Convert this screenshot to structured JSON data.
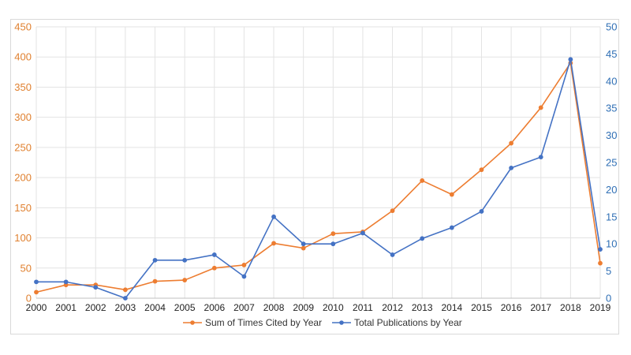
{
  "chart_data": {
    "type": "line",
    "title": "",
    "xlabel": "",
    "ylabel": "",
    "categories": [
      "2000",
      "2001",
      "2002",
      "2003",
      "2004",
      "2005",
      "2006",
      "2007",
      "2008",
      "2009",
      "2010",
      "2011",
      "2012",
      "2013",
      "2014",
      "2015",
      "2016",
      "2017",
      "2018",
      "2019"
    ],
    "y_left_lim": [
      0,
      450
    ],
    "y_left_ticks": [
      0,
      50,
      100,
      150,
      200,
      250,
      300,
      350,
      400,
      450
    ],
    "y_right_lim": [
      0,
      50
    ],
    "y_right_ticks": [
      0,
      5,
      10,
      15,
      20,
      25,
      30,
      35,
      40,
      45,
      50
    ],
    "grid": true,
    "legend_position": "bottom",
    "series": [
      {
        "name": "Sum of Times Cited by Year",
        "axis": "left",
        "color": "#ed7d31",
        "values": [
          10,
          22,
          22,
          14,
          28,
          30,
          50,
          55,
          91,
          83,
          107,
          110,
          145,
          195,
          172,
          213,
          257,
          316,
          390,
          58
        ]
      },
      {
        "name": "Total Publications by Year",
        "axis": "right",
        "color": "#4472c4",
        "values": [
          3,
          3,
          2,
          0,
          7,
          7,
          8,
          4,
          15,
          10,
          10,
          12,
          8,
          11,
          13,
          16,
          24,
          26,
          44,
          9
        ]
      }
    ]
  }
}
